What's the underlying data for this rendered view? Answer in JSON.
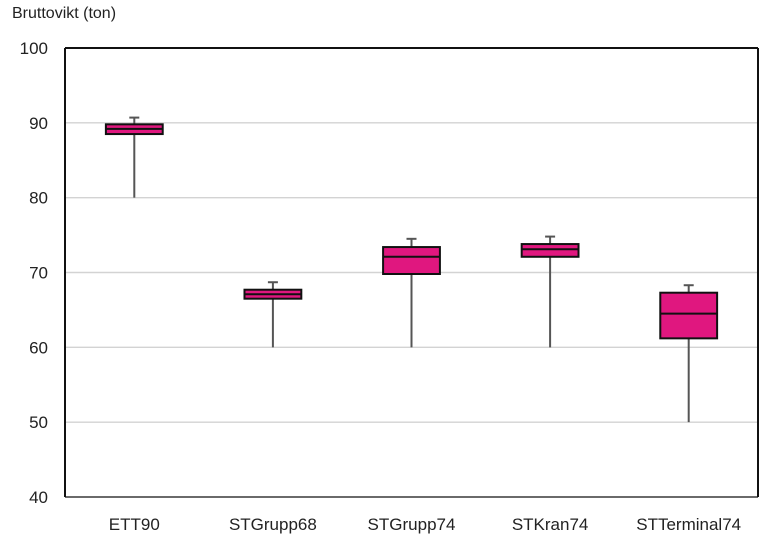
{
  "chart_data": {
    "type": "boxplot",
    "title": "",
    "xlabel": "",
    "ylabel": "Bruttovikt (ton)",
    "ylim": [
      40,
      100
    ],
    "yticks": [
      40,
      50,
      60,
      70,
      80,
      90,
      100
    ],
    "grid": true,
    "legend": "none",
    "box_color": "#E0177F",
    "categories": [
      "ETT90",
      "STGrupp68",
      "STGrupp74",
      "STKran74",
      "STTerminal74"
    ],
    "boxes": [
      {
        "category": "ETT90",
        "min": 80,
        "q1": 88.5,
        "median": 89.2,
        "q3": 89.8,
        "max": 90.7
      },
      {
        "category": "STGrupp68",
        "min": 60,
        "q1": 66.5,
        "median": 67.1,
        "q3": 67.7,
        "max": 68.7
      },
      {
        "category": "STGrupp74",
        "min": 60,
        "q1": 69.8,
        "median": 72.1,
        "q3": 73.4,
        "max": 74.5
      },
      {
        "category": "STKran74",
        "min": 60,
        "q1": 72.1,
        "median": 73.1,
        "q3": 73.8,
        "max": 74.8
      },
      {
        "category": "STTerminal74",
        "min": 50,
        "q1": 61.2,
        "median": 64.5,
        "q3": 67.3,
        "max": 68.3
      }
    ]
  }
}
